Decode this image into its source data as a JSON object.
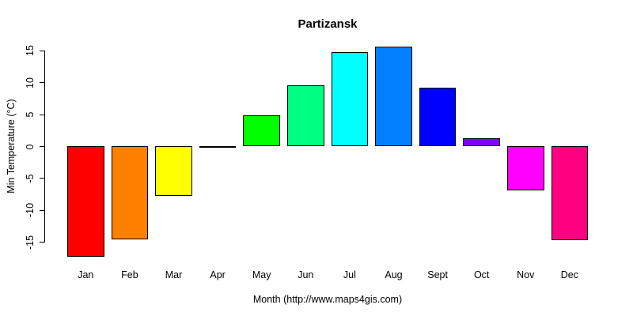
{
  "title": "Partizansk",
  "y_axis": {
    "label": "Min Temperature (°C)",
    "ticks": [
      -15,
      -10,
      -5,
      0,
      5,
      10,
      15
    ]
  },
  "x_axis": {
    "caption": "Month (http://www.maps4gis.com)"
  },
  "chart_data": {
    "type": "bar",
    "title": "Partizansk",
    "xlabel": "Month (http://www.maps4gis.com)",
    "ylabel": "Min Temperature (°C)",
    "categories": [
      "Jan",
      "Feb",
      "Mar",
      "Apr",
      "May",
      "Jun",
      "Jul",
      "Aug",
      "Sept",
      "Oct",
      "Nov",
      "Dec"
    ],
    "values": [
      -17.3,
      -14.6,
      -7.8,
      -0.3,
      4.8,
      9.5,
      14.7,
      15.6,
      9.2,
      1.2,
      -7.0,
      -14.7
    ],
    "bar_colors": [
      "#FF0000",
      "#FF8000",
      "#FFFF00",
      "#80FF00",
      "#00FF00",
      "#00FF80",
      "#00FFFF",
      "#0080FF",
      "#0000FF",
      "#8000FF",
      "#FF00FF",
      "#FF0080"
    ],
    "bar_border_color": "#000000",
    "background_color": "#FFFFFF",
    "text_color": "#000000",
    "ylim": [
      -17.5,
      15.6
    ],
    "y_tick_values": [
      -15,
      -10,
      -5,
      0,
      5,
      10,
      15
    ],
    "grid": false,
    "legend": "none",
    "baseline": 0
  }
}
